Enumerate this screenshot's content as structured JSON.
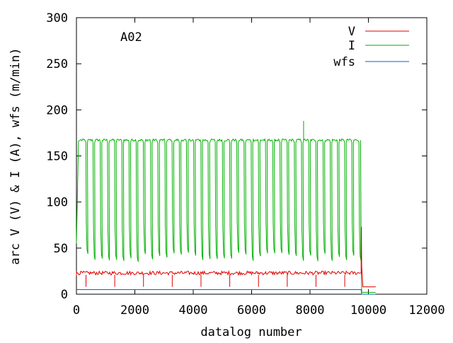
{
  "chart_data": {
    "type": "line",
    "annotation": "A02",
    "xlabel": "datalog number",
    "ylabel": "arc V (V) & I (A), wfs (m/min)",
    "xlim": [
      0,
      12000
    ],
    "ylim": [
      0,
      300
    ],
    "x_ticks": [
      "0",
      "2000",
      "4000",
      "6000",
      "8000",
      "10000",
      "12000"
    ],
    "y_ticks": [
      "0",
      "50",
      "100",
      "150",
      "200",
      "250",
      "300"
    ],
    "grid": false,
    "legend_position": "top-right",
    "series": [
      {
        "name": "V",
        "color": "#e00000",
        "baseline": 23,
        "pulse_min": 8,
        "pulse_count": 39,
        "end_spike_x": 9750,
        "end_spike_max": 73,
        "end_x": 10250,
        "end_value": 8
      },
      {
        "name": "I",
        "color": "#00b000",
        "plateau": 167,
        "pulse_min": 35,
        "pulse_count": 39,
        "peak": {
          "x": 7780,
          "y": 188
        },
        "end_x": 9750,
        "end_value": 2
      },
      {
        "name": "wfs",
        "color": "#0060d0",
        "baseline": 5,
        "end_x": 9750,
        "end_value": 0
      }
    ]
  }
}
